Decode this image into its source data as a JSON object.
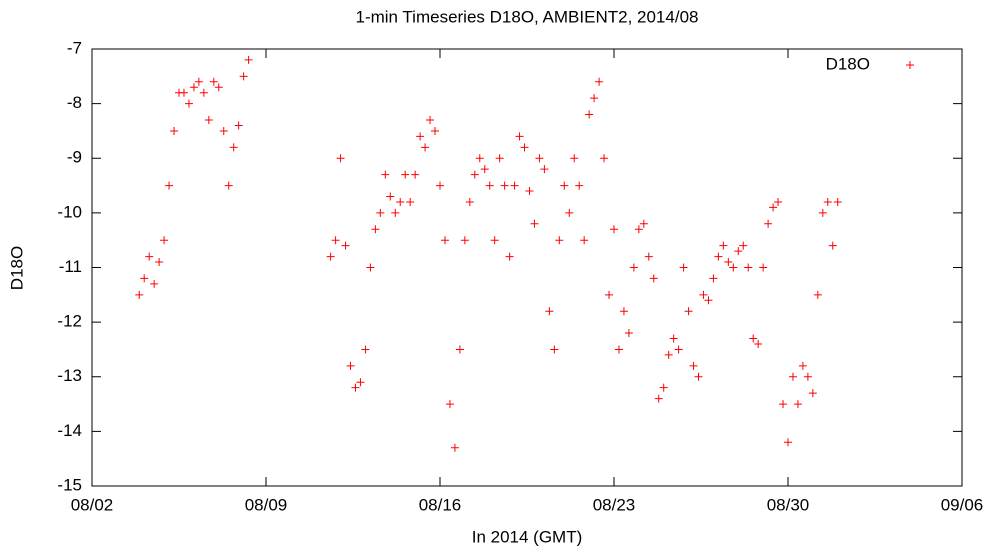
{
  "chart_data": {
    "type": "scatter",
    "title": "1-min Timeseries D18O, AMBIENT2, 2014/08",
    "x_label": "In 2014 (GMT)",
    "y_label": "D18O",
    "legend": "top-right",
    "xlim": [
      2,
      37
    ],
    "xticks": [
      {
        "value": 2,
        "label": "08/02"
      },
      {
        "value": 9,
        "label": "08/09"
      },
      {
        "value": 16,
        "label": "08/16"
      },
      {
        "value": 23,
        "label": "08/23"
      },
      {
        "value": 30,
        "label": "08/30"
      },
      {
        "value": 37,
        "label": "09/06"
      }
    ],
    "ylim": [
      -15,
      -7
    ],
    "yticks": [
      -15,
      -14,
      -13,
      -12,
      -11,
      -10,
      -9,
      -8,
      -7
    ],
    "series": [
      {
        "name": "D18O",
        "color": "#ff0000",
        "x": [
          3.9,
          4.1,
          4.3,
          4.5,
          4.7,
          4.9,
          5.1,
          5.3,
          5.5,
          5.7,
          5.9,
          6.1,
          6.3,
          6.5,
          6.7,
          6.9,
          7.1,
          7.3,
          7.5,
          7.7,
          7.9,
          8.1,
          8.3,
          11.6,
          11.8,
          12,
          12.2,
          12.4,
          12.6,
          12.8,
          13,
          13.2,
          13.4,
          13.6,
          13.8,
          14,
          14.2,
          14.4,
          14.6,
          14.8,
          15,
          15.2,
          15.4,
          15.6,
          15.8,
          16,
          16.2,
          16.4,
          16.6,
          16.8,
          17,
          17.2,
          17.4,
          17.6,
          17.8,
          18,
          18.2,
          18.4,
          18.6,
          18.8,
          19,
          19.2,
          19.4,
          19.6,
          19.8,
          20,
          20.2,
          20.4,
          20.6,
          20.8,
          21,
          21.2,
          21.4,
          21.6,
          21.8,
          22,
          22.2,
          22.4,
          22.6,
          22.8,
          23,
          23.2,
          23.4,
          23.6,
          23.8,
          24,
          24.2,
          24.4,
          24.6,
          24.8,
          25,
          25.2,
          25.4,
          25.6,
          25.8,
          26,
          26.2,
          26.4,
          26.6,
          26.8,
          27,
          27.2,
          27.4,
          27.6,
          27.8,
          28,
          28.2,
          28.4,
          28.6,
          28.8,
          29,
          29.2,
          29.4,
          29.6,
          29.8,
          30,
          30.2,
          30.4,
          30.6,
          30.8,
          31,
          31.2,
          31.4,
          31.6,
          31.8,
          32
        ],
        "values": [
          -11.5,
          -11.2,
          -10.8,
          -11.3,
          -10.9,
          -10.5,
          -9.5,
          -8.5,
          -7.8,
          -7.8,
          -8.0,
          -7.7,
          -7.6,
          -7.8,
          -8.3,
          -7.6,
          -7.7,
          -8.5,
          -9.5,
          -8.8,
          -8.4,
          -7.5,
          -7.2,
          -10.8,
          -10.5,
          -9.0,
          -10.6,
          -12.8,
          -13.2,
          -13.1,
          -12.5,
          -11.0,
          -10.3,
          -10.0,
          -9.3,
          -9.7,
          -10.0,
          -9.8,
          -9.3,
          -9.8,
          -9.3,
          -8.6,
          -8.8,
          -8.3,
          -8.5,
          -9.5,
          -10.5,
          -13.5,
          -14.3,
          -12.5,
          -10.5,
          -9.8,
          -9.3,
          -9.0,
          -9.2,
          -9.5,
          -10.5,
          -9.0,
          -9.5,
          -10.8,
          -9.5,
          -8.6,
          -8.8,
          -9.6,
          -10.2,
          -9.0,
          -9.2,
          -11.8,
          -12.5,
          -10.5,
          -9.5,
          -10.0,
          -9.0,
          -9.5,
          -10.5,
          -8.2,
          -7.9,
          -7.6,
          -9.0,
          -11.5,
          -10.3,
          -12.5,
          -11.8,
          -12.2,
          -11.0,
          -10.3,
          -10.2,
          -10.8,
          -11.2,
          -13.4,
          -13.2,
          -12.6,
          -12.3,
          -12.5,
          -11.0,
          -11.8,
          -12.8,
          -13.0,
          -11.5,
          -11.6,
          -11.2,
          -10.8,
          -10.6,
          -10.9,
          -11.0,
          -10.7,
          -10.6,
          -11.0,
          -12.3,
          -12.4,
          -11.0,
          -10.2,
          -9.9,
          -9.8,
          -13.5,
          -14.2,
          -13.0,
          -13.5,
          -12.8,
          -13.0,
          -13.3,
          -11.5,
          -10.0,
          -9.8,
          -10.6,
          -9.8
        ]
      }
    ]
  }
}
